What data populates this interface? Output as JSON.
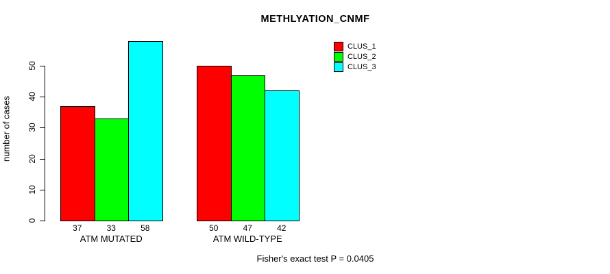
{
  "chart_data": {
    "type": "bar",
    "title": "METHLYATION_CNMF",
    "ylabel": "number of cases",
    "xlabel": "",
    "categories": [
      "ATM MUTATED",
      "ATM WILD-TYPE"
    ],
    "series": [
      {
        "name": "CLUS_1",
        "color": "#ff0000",
        "values": [
          37,
          50
        ]
      },
      {
        "name": "CLUS_2",
        "color": "#00ff00",
        "values": [
          33,
          47
        ]
      },
      {
        "name": "CLUS_3",
        "color": "#00ffff",
        "values": [
          58,
          42
        ]
      }
    ],
    "bar_value_labels": [
      [
        37,
        33,
        58
      ],
      [
        50,
        47,
        42
      ]
    ],
    "yticks": [
      0,
      10,
      20,
      30,
      40,
      50
    ],
    "ylim": [
      0,
      58
    ],
    "grid": false,
    "legend_position": "top-right-inside",
    "annotation": "Fisher's exact test P = 0.0405"
  },
  "colors": {
    "background": "#ffffff",
    "axis": "#000000",
    "text": "#000000",
    "bar_border": "#000000"
  }
}
